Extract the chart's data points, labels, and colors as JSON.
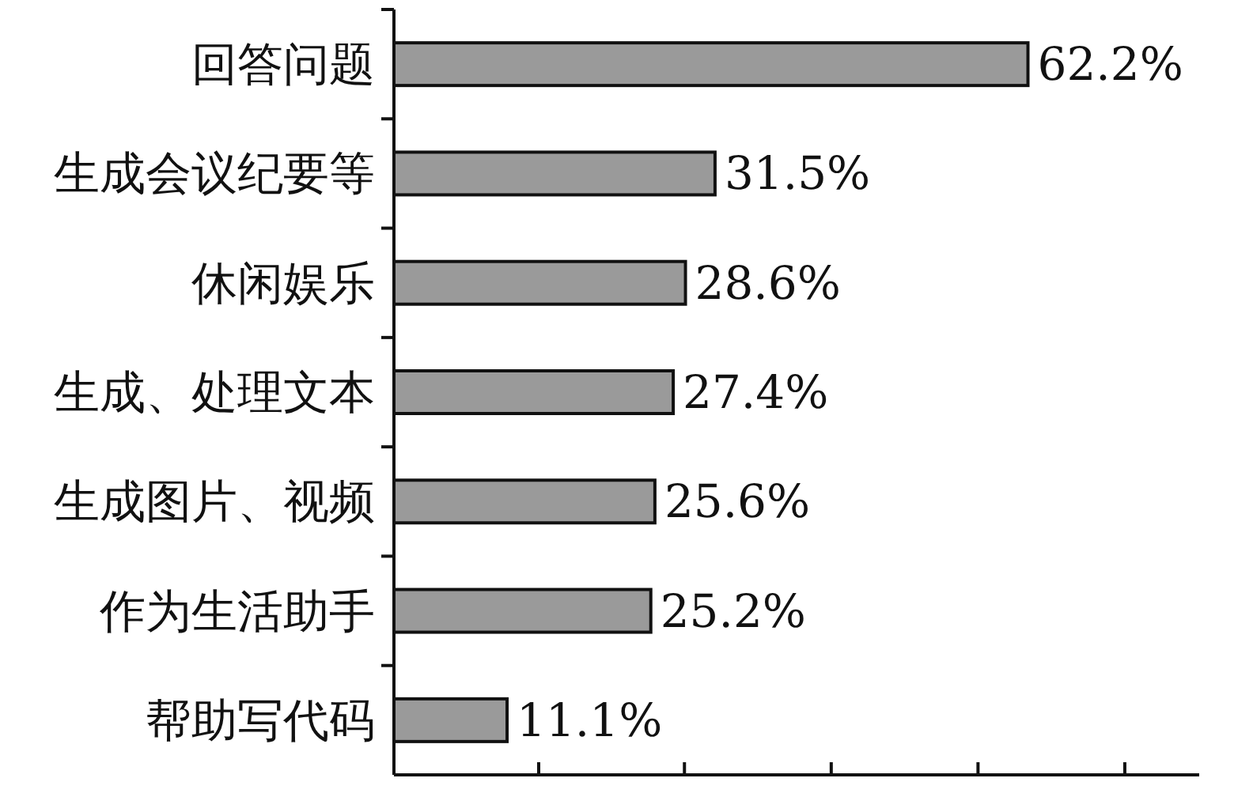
{
  "chart_data": {
    "type": "bar",
    "orientation": "horizontal",
    "categories": [
      "回答问题",
      "生成会议纪要等",
      "休闲娱乐",
      "生成、处理文本",
      "生成图片、视频",
      "作为生活助手",
      "帮助写代码"
    ],
    "values": [
      62.2,
      31.5,
      28.6,
      27.4,
      25.6,
      25.2,
      11.1
    ],
    "value_labels": [
      "62.2%",
      "31.5%",
      "28.6%",
      "27.4%",
      "25.6%",
      "25.2%",
      "11.1%"
    ],
    "color": "#9a9a9a",
    "xlim": [
      0,
      79
    ],
    "xticks": [
      {
        "value": 14.2,
        "label": null
      },
      {
        "value": 28.5,
        "label": null
      },
      {
        "value": 42.9,
        "label": null
      },
      {
        "value": 57.3,
        "label": null
      },
      {
        "value": 71.7,
        "label": null
      }
    ],
    "grid": false
  }
}
